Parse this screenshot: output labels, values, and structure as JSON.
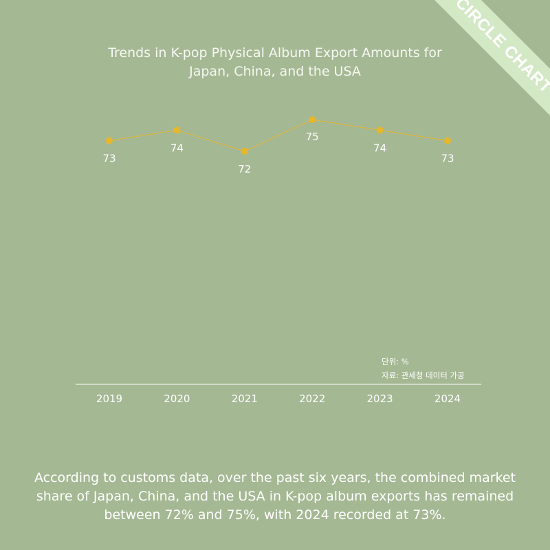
{
  "brand": {
    "ribbon_label": "CIRCLE CHART",
    "ribbon_color": "#d3e8c5"
  },
  "colors": {
    "background": "#a5b894",
    "line": "#e6b72c",
    "axis": "#ffffff"
  },
  "title_lines": [
    "Trends in K-pop Physical Album Export Amounts for",
    "Japan, China, and the USA"
  ],
  "chart_data": {
    "type": "line",
    "title": "Trends in K-pop Physical Album Export Amounts for Japan, China, and the USA",
    "categories": [
      "2019",
      "2020",
      "2021",
      "2022",
      "2023",
      "2024"
    ],
    "series": [
      {
        "values": [
          73,
          74,
          72,
          75,
          74,
          73
        ],
        "color": "#e6b72c"
      }
    ],
    "data_labels": [
      "73",
      "74",
      "72",
      "75",
      "74",
      "73"
    ],
    "ylim": [
      72,
      75
    ],
    "grid": false,
    "legend": "none"
  },
  "source": {
    "unit": "단위: %",
    "source": "자료: 관세청 데이터 가공"
  },
  "caption_lines": [
    "According to customs data, over the past six years, the combined market",
    "share of Japan, China, and the USA in K-pop album exports has remained",
    "between 72% and 75%, with 2024 recorded at 73%."
  ]
}
